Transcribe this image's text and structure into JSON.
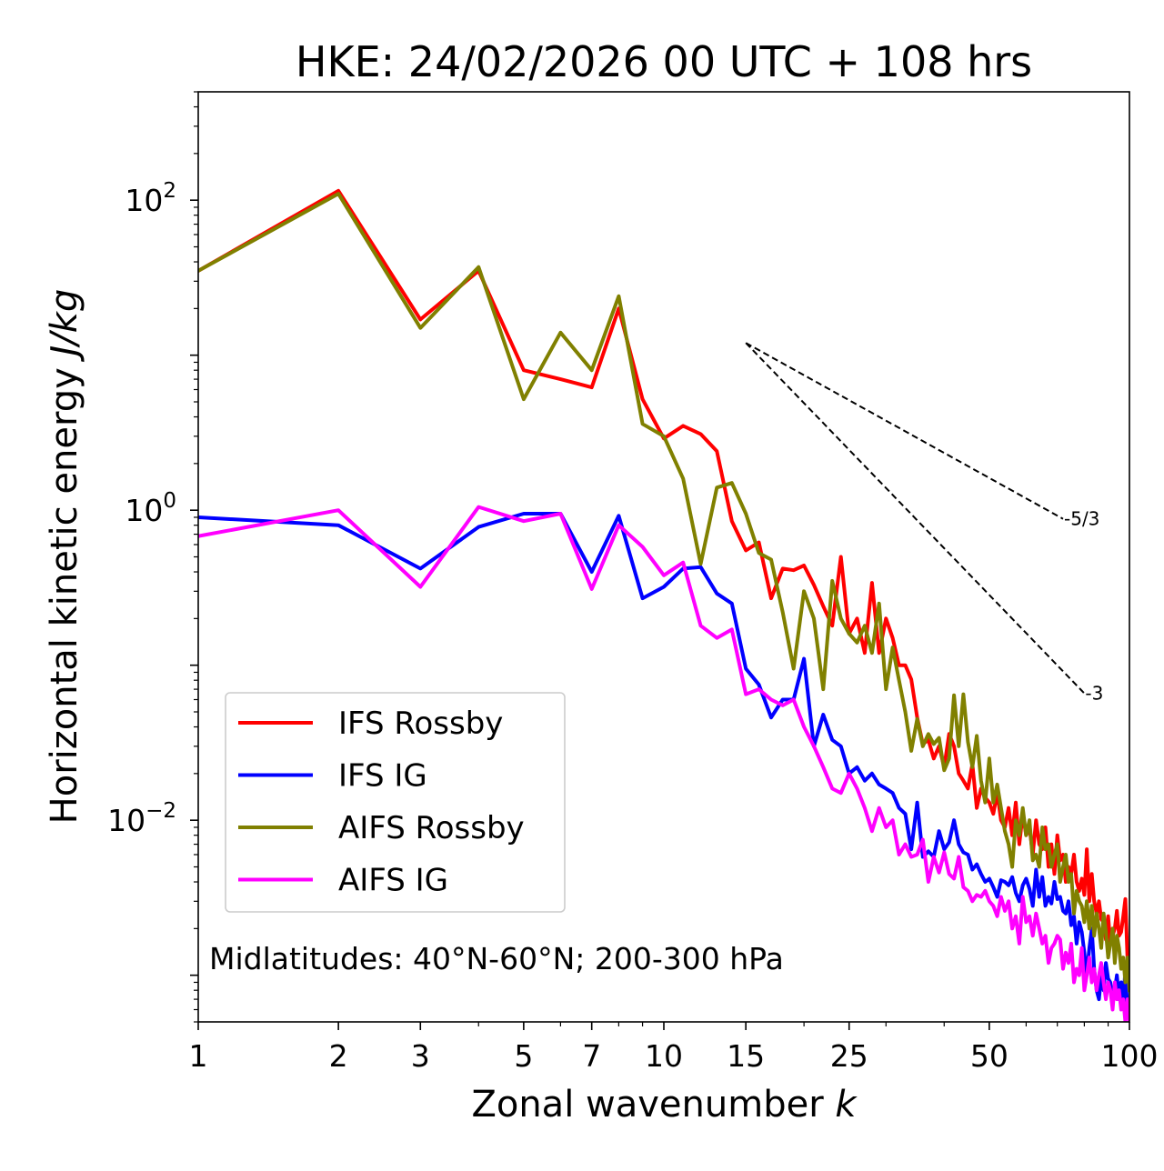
{
  "chart_data": {
    "type": "line",
    "title": "HKE: 24/02/2026 00 UTC + 108 hrs",
    "xlabel_main": "Zonal wavenumber ",
    "xlabel_var": "k",
    "ylabel_main": "Horizontal kinetic energy ",
    "ylabel_unit": "J/kg",
    "xscale": "log",
    "yscale": "log",
    "xlim": [
      1,
      100
    ],
    "ylim": [
      0.0005,
      500
    ],
    "xticks": [
      1,
      2,
      3,
      5,
      7,
      10,
      15,
      25,
      50,
      100
    ],
    "xtick_labels": [
      "1",
      "2",
      "3",
      "5",
      "7",
      "10",
      "15",
      "25",
      "50",
      "100"
    ],
    "yticks": [
      {
        "value": 100,
        "base": "10",
        "exp": "2"
      },
      {
        "value": 1,
        "base": "10",
        "exp": "0"
      },
      {
        "value": 0.01,
        "base": "10",
        "exp": "−2"
      }
    ],
    "annotation": "Midlatitudes: 40°N-60°N; 200-300 hPa",
    "legend_position": "lower-left",
    "reference_lines": [
      {
        "label": "-5/3",
        "x": [
          15,
          72
        ],
        "y": [
          12.0,
          0.879
        ]
      },
      {
        "label": "-3",
        "x": [
          15,
          80
        ],
        "y": [
          12.0,
          0.0659
        ]
      }
    ],
    "series": [
      {
        "name": "IFS Rossby",
        "color": "#ff0000",
        "x": [
          1,
          2,
          3,
          4,
          5,
          6,
          7,
          8,
          9,
          10,
          11,
          12,
          13,
          14,
          15,
          16,
          17,
          18,
          19,
          20,
          21,
          22,
          23,
          24,
          25,
          26,
          27,
          28,
          29,
          30,
          31,
          32,
          33,
          34,
          35,
          36,
          37,
          38,
          39,
          40,
          41,
          42,
          43,
          44,
          45,
          46,
          47,
          48,
          49,
          50,
          51,
          52,
          53,
          54,
          55,
          56,
          57,
          58,
          59,
          60,
          61,
          62,
          63,
          64,
          65,
          66,
          67,
          68,
          69,
          70,
          71,
          72,
          73,
          74,
          75,
          76,
          77,
          78,
          79,
          80,
          81,
          82,
          83,
          84,
          85,
          86,
          87,
          88,
          89,
          90,
          91,
          92,
          93,
          94,
          95,
          96,
          97,
          98,
          99,
          100
        ],
        "y": [
          35,
          115,
          17,
          35,
          8.0,
          7.0,
          6.2,
          20,
          5.2,
          2.9,
          3.5,
          3.1,
          2.4,
          0.85,
          0.55,
          0.62,
          0.27,
          0.42,
          0.41,
          0.44,
          0.33,
          0.24,
          0.18,
          0.5,
          0.16,
          0.2,
          0.12,
          0.34,
          0.12,
          0.2,
          0.15,
          0.1,
          0.1,
          0.081,
          0.046,
          0.031,
          0.033,
          0.025,
          0.03,
          0.022,
          0.036,
          0.03,
          0.02,
          0.018,
          0.016,
          0.023,
          0.012,
          0.016,
          0.014,
          0.013,
          0.011,
          0.015,
          0.01,
          0.009,
          0.012,
          0.008,
          0.013,
          0.007,
          0.011,
          0.008,
          0.009,
          0.006,
          0.01,
          0.007,
          0.0065,
          0.009,
          0.005,
          0.007,
          0.0045,
          0.008,
          0.0055,
          0.006,
          0.004,
          0.005,
          0.0045,
          0.006,
          0.004,
          0.0035,
          0.0042,
          0.0033,
          0.0065,
          0.003,
          0.0045,
          0.003,
          0.0025,
          0.003,
          0.0023,
          0.0022,
          0.0017,
          0.0024,
          0.0016,
          0.0018,
          0.002,
          0.0026,
          0.0018,
          0.0019,
          0.0024,
          0.0031,
          0.0013,
          0.00085
        ]
      },
      {
        "name": "IFS IG",
        "color": "#0000ff",
        "x": [
          1,
          2,
          3,
          4,
          5,
          6,
          7,
          8,
          9,
          10,
          11,
          12,
          13,
          14,
          15,
          16,
          17,
          18,
          19,
          20,
          21,
          22,
          23,
          24,
          25,
          26,
          27,
          28,
          29,
          30,
          31,
          32,
          33,
          34,
          35,
          36,
          37,
          38,
          39,
          40,
          41,
          42,
          43,
          44,
          45,
          46,
          47,
          48,
          49,
          50,
          51,
          52,
          53,
          54,
          55,
          56,
          57,
          58,
          59,
          60,
          61,
          62,
          63,
          64,
          65,
          66,
          67,
          68,
          69,
          70,
          71,
          72,
          73,
          74,
          75,
          76,
          77,
          78,
          79,
          80,
          81,
          82,
          83,
          84,
          85,
          86,
          87,
          88,
          89,
          90,
          91,
          92,
          93,
          94,
          95,
          96,
          97,
          98,
          99,
          100
        ],
        "y": [
          0.9,
          0.8,
          0.42,
          0.78,
          0.95,
          0.95,
          0.4,
          0.92,
          0.27,
          0.32,
          0.42,
          0.43,
          0.29,
          0.25,
          0.095,
          0.075,
          0.046,
          0.06,
          0.06,
          0.11,
          0.03,
          0.048,
          0.033,
          0.03,
          0.02,
          0.022,
          0.018,
          0.02,
          0.017,
          0.016,
          0.015,
          0.012,
          0.011,
          0.0065,
          0.013,
          0.0058,
          0.0063,
          0.0058,
          0.0085,
          0.0065,
          0.0072,
          0.01,
          0.007,
          0.0062,
          0.006,
          0.0048,
          0.0052,
          0.0045,
          0.004,
          0.0042,
          0.0037,
          0.0032,
          0.0041,
          0.004,
          0.0038,
          0.0043,
          0.0034,
          0.003,
          0.0038,
          0.0042,
          0.0036,
          0.0028,
          0.0048,
          0.0032,
          0.0043,
          0.0028,
          0.0032,
          0.0029,
          0.004,
          0.0031,
          0.0032,
          0.0026,
          0.0025,
          0.003,
          0.0021,
          0.0024,
          0.0016,
          0.0022,
          0.0019,
          0.0014,
          0.001,
          0.0015,
          0.002,
          0.0011,
          0.0008,
          0.0007,
          0.001,
          0.0008,
          0.0012,
          0.00095,
          0.0009,
          0.0007,
          0.0008,
          0.001,
          0.0007,
          0.0009,
          0.00065,
          0.0011,
          0.0006,
          0.0006
        ]
      },
      {
        "name": "AIFS Rossby",
        "color": "#808000",
        "x": [
          1,
          2,
          3,
          4,
          5,
          6,
          7,
          8,
          9,
          10,
          11,
          12,
          13,
          14,
          15,
          16,
          17,
          18,
          19,
          20,
          21,
          22,
          23,
          24,
          25,
          26,
          27,
          28,
          29,
          30,
          31,
          32,
          33,
          34,
          35,
          36,
          37,
          38,
          39,
          40,
          41,
          42,
          43,
          44,
          45,
          46,
          47,
          48,
          49,
          50,
          51,
          52,
          53,
          54,
          55,
          56,
          57,
          58,
          59,
          60,
          61,
          62,
          63,
          64,
          65,
          66,
          67,
          68,
          69,
          70,
          71,
          72,
          73,
          74,
          75,
          76,
          77,
          78,
          79,
          80,
          81,
          82,
          83,
          84,
          85,
          86,
          87,
          88,
          89,
          90,
          91,
          92,
          93,
          94,
          95,
          96,
          97,
          98,
          99,
          100
        ],
        "y": [
          35,
          110,
          15,
          37,
          5.2,
          14,
          8.0,
          24,
          3.6,
          3.0,
          1.6,
          0.45,
          1.4,
          1.5,
          0.95,
          0.53,
          0.48,
          0.22,
          0.095,
          0.3,
          0.2,
          0.07,
          0.35,
          0.2,
          0.16,
          0.14,
          0.18,
          0.12,
          0.25,
          0.07,
          0.13,
          0.08,
          0.05,
          0.028,
          0.045,
          0.03,
          0.036,
          0.031,
          0.034,
          0.021,
          0.025,
          0.064,
          0.03,
          0.065,
          0.032,
          0.022,
          0.035,
          0.018,
          0.013,
          0.025,
          0.013,
          0.017,
          0.012,
          0.0085,
          0.007,
          0.005,
          0.01,
          0.008,
          0.012,
          0.008,
          0.01,
          0.0055,
          0.006,
          0.005,
          0.009,
          0.0065,
          0.007,
          0.005,
          0.006,
          0.007,
          0.004,
          0.005,
          0.006,
          0.004,
          0.0045,
          0.0025,
          0.0035,
          0.003,
          0.0028,
          0.0022,
          0.003,
          0.002,
          0.0028,
          0.0018,
          0.0025,
          0.002,
          0.0015,
          0.0025,
          0.0019,
          0.0013,
          0.0016,
          0.002,
          0.0012,
          0.0018,
          0.0015,
          0.0011,
          0.0013,
          0.0009,
          0.0013,
          0.0008
        ]
      },
      {
        "name": "AIFS IG",
        "color": "#ff00ff",
        "x": [
          1,
          2,
          3,
          4,
          5,
          6,
          7,
          8,
          9,
          10,
          11,
          12,
          13,
          14,
          15,
          16,
          17,
          18,
          19,
          20,
          21,
          22,
          23,
          24,
          25,
          26,
          27,
          28,
          29,
          30,
          31,
          32,
          33,
          34,
          35,
          36,
          37,
          38,
          39,
          40,
          41,
          42,
          43,
          44,
          45,
          46,
          47,
          48,
          49,
          50,
          51,
          52,
          53,
          54,
          55,
          56,
          57,
          58,
          59,
          60,
          61,
          62,
          63,
          64,
          65,
          66,
          67,
          68,
          69,
          70,
          71,
          72,
          73,
          74,
          75,
          76,
          77,
          78,
          79,
          80,
          81,
          82,
          83,
          84,
          85,
          86,
          87,
          88,
          89,
          90,
          91,
          92,
          93,
          94,
          95,
          96,
          97,
          98,
          99,
          100
        ],
        "y": [
          0.68,
          1.0,
          0.32,
          1.05,
          0.85,
          0.95,
          0.31,
          0.8,
          0.58,
          0.38,
          0.46,
          0.18,
          0.15,
          0.17,
          0.065,
          0.07,
          0.06,
          0.055,
          0.06,
          0.04,
          0.03,
          0.022,
          0.016,
          0.015,
          0.02,
          0.016,
          0.012,
          0.0085,
          0.012,
          0.009,
          0.01,
          0.006,
          0.007,
          0.0058,
          0.006,
          0.0075,
          0.004,
          0.0058,
          0.0046,
          0.0062,
          0.0045,
          0.0042,
          0.0058,
          0.0037,
          0.0035,
          0.003,
          0.0033,
          0.0032,
          0.0035,
          0.003,
          0.0028,
          0.0024,
          0.0032,
          0.0026,
          0.003,
          0.002,
          0.0024,
          0.0016,
          0.0032,
          0.0022,
          0.0024,
          0.0018,
          0.0025,
          0.002,
          0.0016,
          0.0018,
          0.0012,
          0.0015,
          0.0016,
          0.0018,
          0.0017,
          0.0011,
          0.0014,
          0.0012,
          0.0016,
          0.0009,
          0.0011,
          0.001,
          0.0015,
          0.0008,
          0.001,
          0.0013,
          0.0009,
          0.0011,
          0.0008,
          0.001,
          0.0012,
          0.0009,
          0.0007,
          0.0009,
          0.0008,
          0.0006,
          0.0009,
          0.0007,
          0.0008,
          0.0006,
          0.0007,
          0.0005,
          0.0007,
          0.0005
        ]
      }
    ]
  }
}
